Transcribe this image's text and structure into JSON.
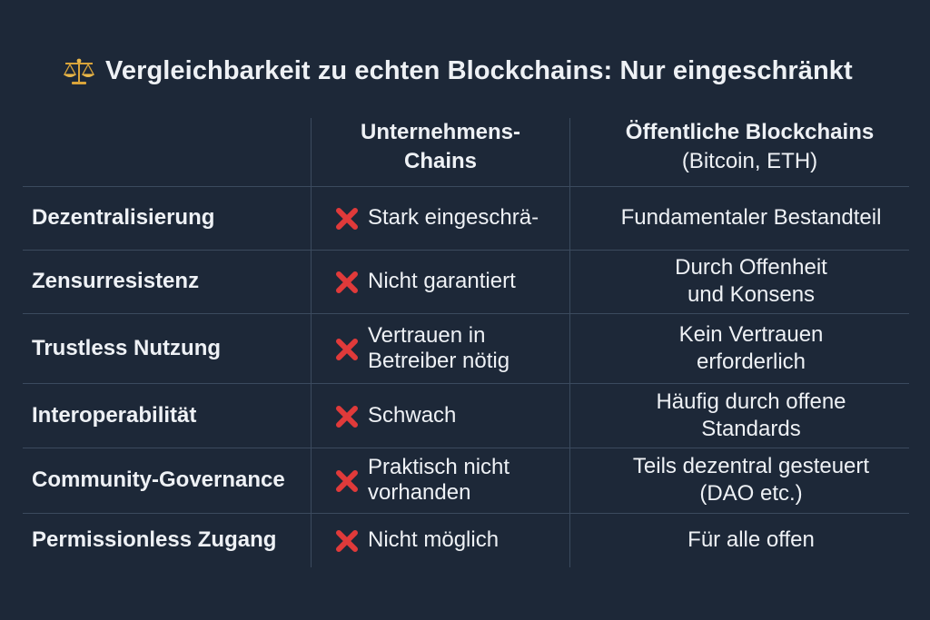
{
  "title": "Vergleichbarkeit zu echten Blockchains: Nur eingeschränkt",
  "icons": {
    "title": "scale-icon",
    "negative": "red-cross-icon"
  },
  "colors": {
    "background": "#1d2838",
    "cross": "#e03a3a",
    "text": "#eef1f5"
  },
  "columns": {
    "col2": {
      "line1": "Unternehmens-",
      "line2": "Chains"
    },
    "col3": {
      "line1": "Öffentliche Blockchains",
      "line2": "(Bitcoin, ETH)"
    }
  },
  "rows": [
    {
      "criterion": "Dezentralisierung",
      "enterprise": "Stark eingeschrä-",
      "public": "Fundamentaler Bestandteil"
    },
    {
      "criterion": "Zensurresistenz",
      "enterprise": "Nicht garantiert",
      "public": "Durch Offenheit\nund Konsens"
    },
    {
      "criterion": "Trustless Nutzung",
      "enterprise": "Vertrauen in\nBetreiber nötig",
      "public": "Kein Vertrauen\nerforderlich"
    },
    {
      "criterion": "Interoperabilität",
      "enterprise": "Schwach",
      "public": "Häufig durch offene\nStandards"
    },
    {
      "criterion": "Community-Governance",
      "enterprise": "Praktisch nicht\nvorhanden",
      "public": "Teils dezentral gesteuert\n(DAO etc.)"
    },
    {
      "criterion": "Permissionless Zugang",
      "enterprise": "Nicht möglich",
      "public": "Für alle offen"
    }
  ]
}
